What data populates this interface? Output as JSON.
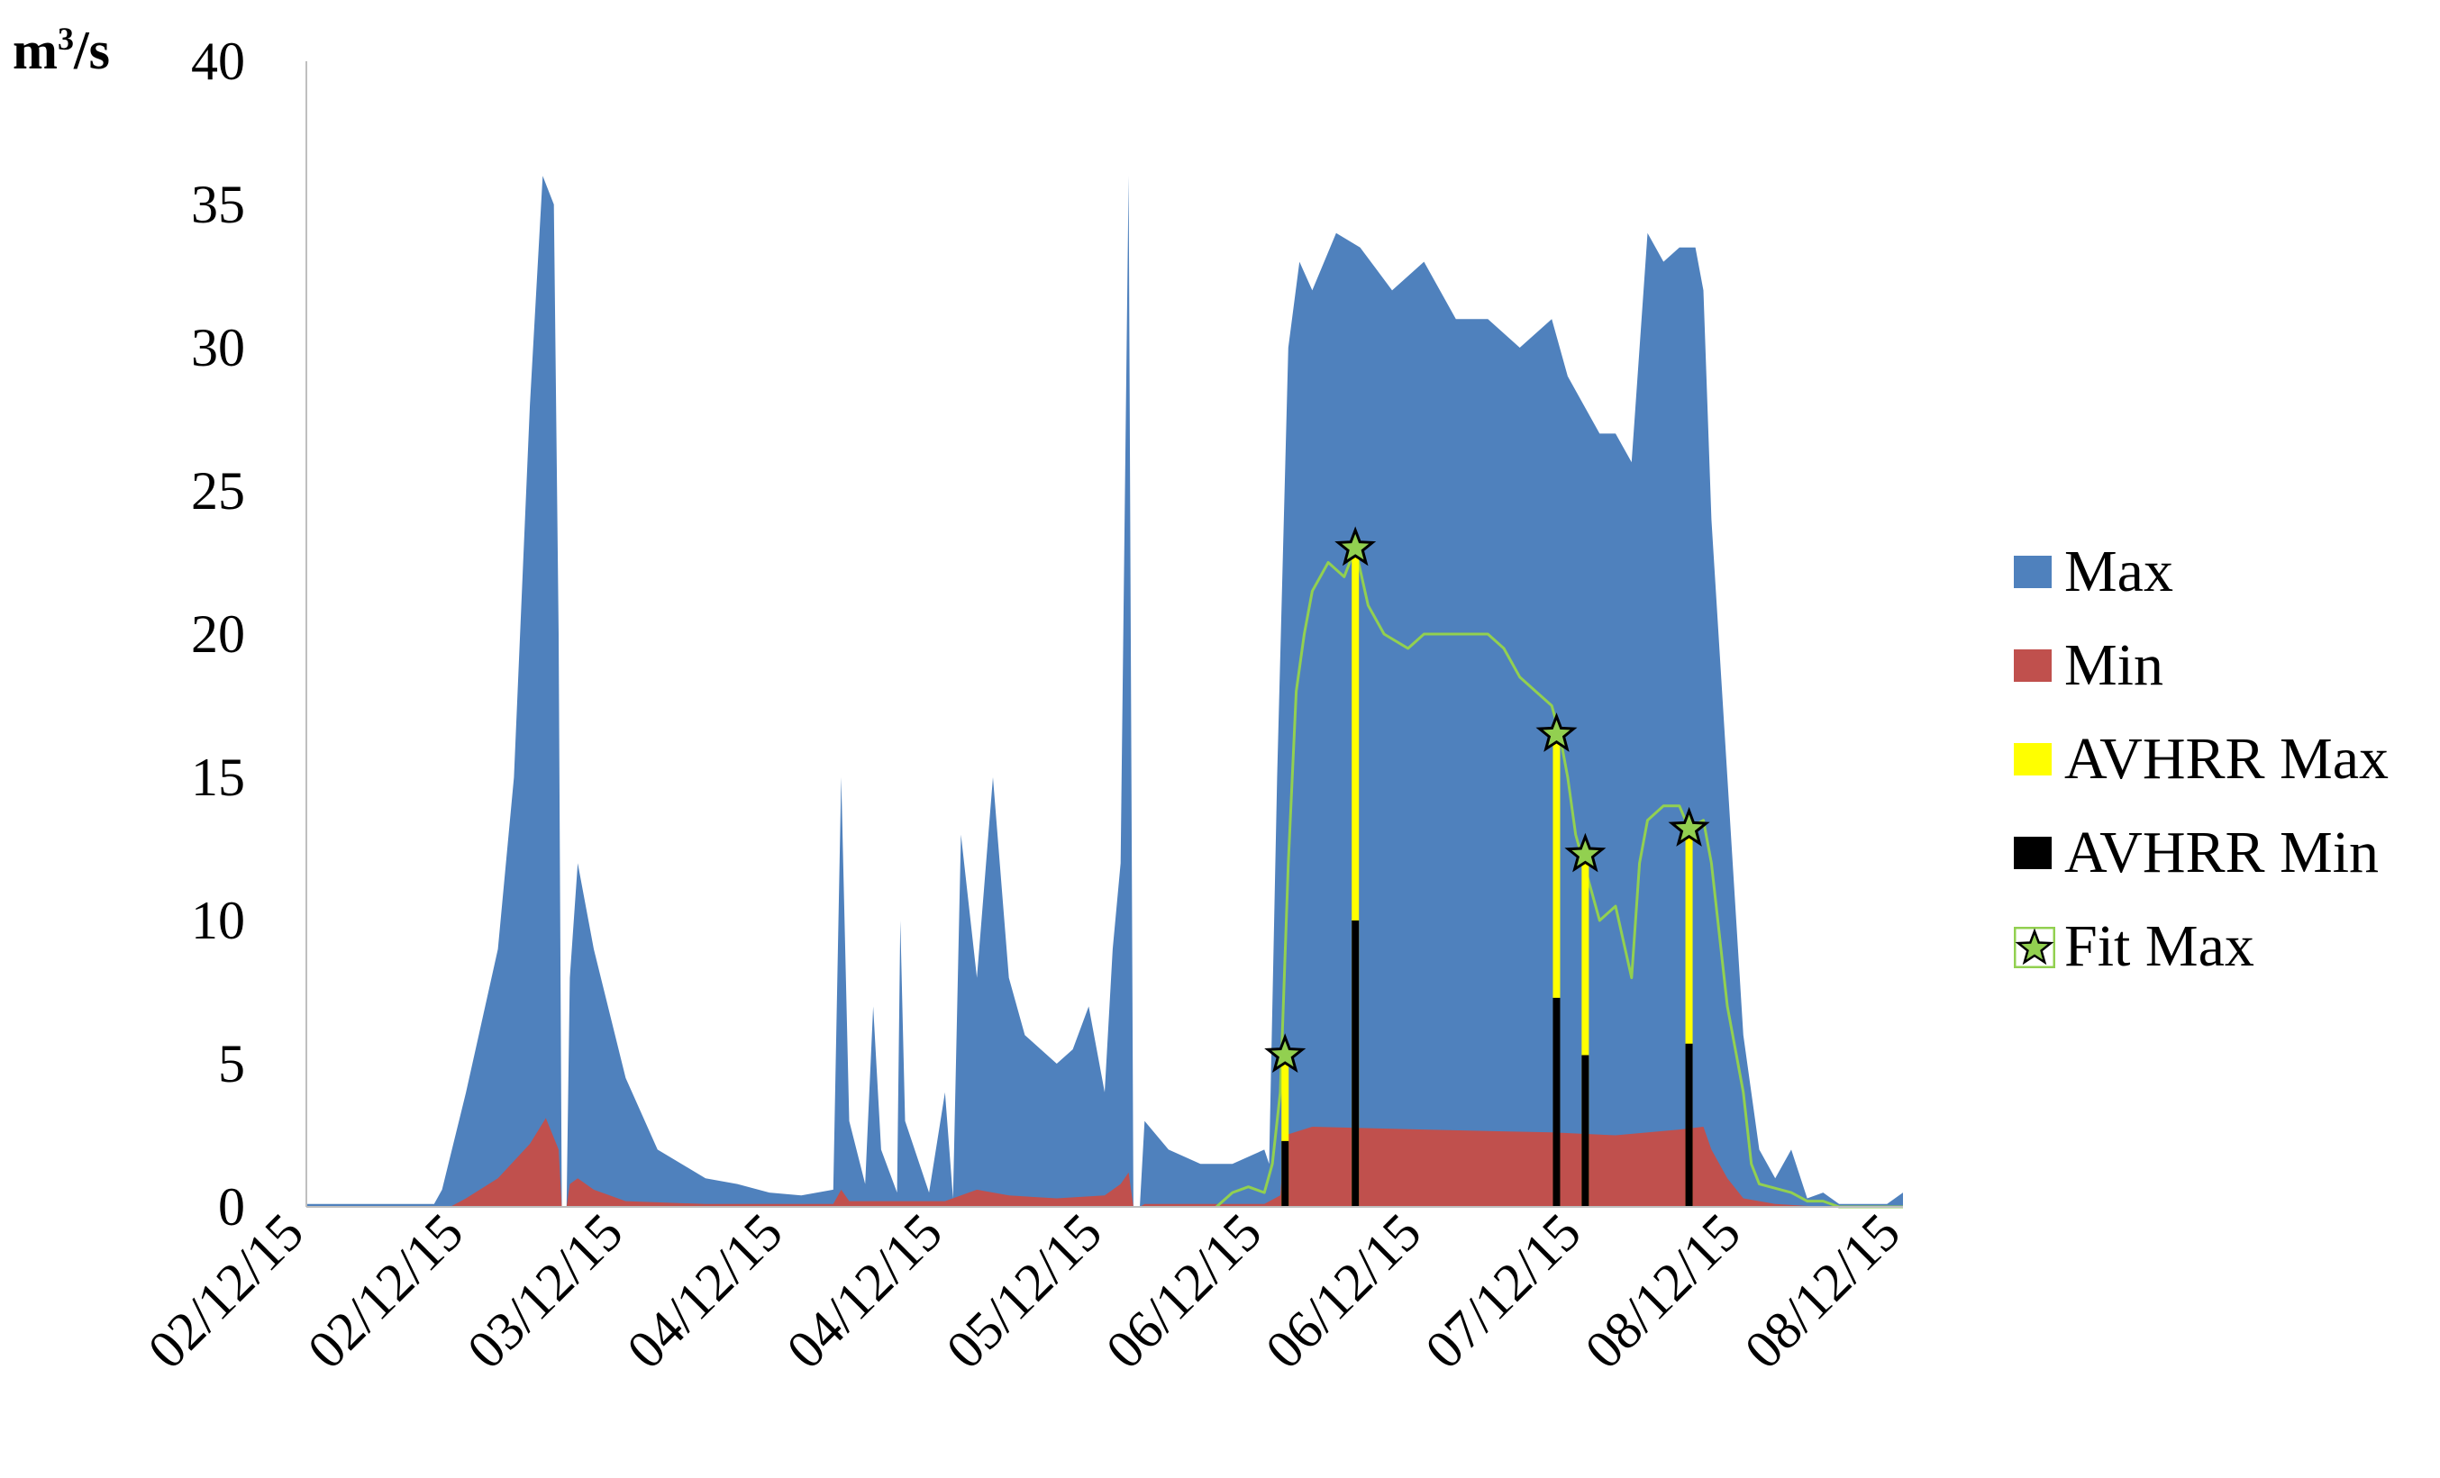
{
  "chart_data": {
    "type": "area",
    "ylabel_unit": "m3/s",
    "ylabel_unit_base": "m",
    "ylabel_unit_sup": "3",
    "ylabel_unit_rest": "/s",
    "ylim": [
      0,
      40
    ],
    "yticks": [
      "0",
      "5",
      "10",
      "15",
      "20",
      "25",
      "30",
      "35",
      "40"
    ],
    "xlim": [
      "2015-02-01",
      "2015-08-31"
    ],
    "xticks": [
      {
        "label": "02/12/15",
        "pos": 0.0
      },
      {
        "label": "02/12/15",
        "pos": 0.1
      },
      {
        "label": "03/12/15",
        "pos": 0.2
      },
      {
        "label": "04/12/15",
        "pos": 0.3
      },
      {
        "label": "04/12/15",
        "pos": 0.4
      },
      {
        "label": "05/12/15",
        "pos": 0.5
      },
      {
        "label": "06/12/15",
        "pos": 0.6
      },
      {
        "label": "06/12/15",
        "pos": 0.7
      },
      {
        "label": "07/12/15",
        "pos": 0.8
      },
      {
        "label": "08/12/15",
        "pos": 0.9
      },
      {
        "label": "08/12/15",
        "pos": 1.0
      }
    ],
    "legend_position": "right",
    "grid": false,
    "series": [
      {
        "name": "Max",
        "color": "#4f81bd",
        "style": "area",
        "points": [
          [
            0.0,
            0.1
          ],
          [
            0.05,
            0.1
          ],
          [
            0.08,
            0.1
          ],
          [
            0.085,
            0.6
          ],
          [
            0.1,
            4.0
          ],
          [
            0.12,
            9.0
          ],
          [
            0.13,
            15.0
          ],
          [
            0.14,
            28.0
          ],
          [
            0.148,
            36.0
          ],
          [
            0.155,
            35.0
          ],
          [
            0.158,
            20.0
          ],
          [
            0.16,
            0.0
          ],
          [
            0.163,
            0.0
          ],
          [
            0.165,
            8.0
          ],
          [
            0.17,
            12.0
          ],
          [
            0.18,
            9.0
          ],
          [
            0.2,
            4.5
          ],
          [
            0.22,
            2.0
          ],
          [
            0.25,
            1.0
          ],
          [
            0.27,
            0.8
          ],
          [
            0.29,
            0.5
          ],
          [
            0.31,
            0.4
          ],
          [
            0.33,
            0.6
          ],
          [
            0.335,
            15.0
          ],
          [
            0.34,
            3.0
          ],
          [
            0.35,
            0.8
          ],
          [
            0.355,
            7.0
          ],
          [
            0.36,
            2.0
          ],
          [
            0.37,
            0.5
          ],
          [
            0.372,
            10.0
          ],
          [
            0.375,
            3.0
          ],
          [
            0.39,
            0.5
          ],
          [
            0.4,
            4.0
          ],
          [
            0.405,
            0.3
          ],
          [
            0.41,
            13.0
          ],
          [
            0.42,
            8.0
          ],
          [
            0.43,
            15.0
          ],
          [
            0.44,
            8.0
          ],
          [
            0.45,
            6.0
          ],
          [
            0.47,
            5.0
          ],
          [
            0.48,
            5.5
          ],
          [
            0.49,
            7.0
          ],
          [
            0.5,
            4.0
          ],
          [
            0.505,
            9.0
          ],
          [
            0.51,
            12.0
          ],
          [
            0.515,
            36.0
          ],
          [
            0.518,
            0.0
          ],
          [
            0.522,
            0.0
          ],
          [
            0.525,
            3.0
          ],
          [
            0.54,
            2.0
          ],
          [
            0.56,
            1.5
          ],
          [
            0.58,
            1.5
          ],
          [
            0.6,
            2.0
          ],
          [
            0.603,
            1.5
          ],
          [
            0.608,
            15.0
          ],
          [
            0.615,
            30.0
          ],
          [
            0.622,
            33.0
          ],
          [
            0.63,
            32.0
          ],
          [
            0.645,
            34.0
          ],
          [
            0.66,
            33.5
          ],
          [
            0.68,
            32.0
          ],
          [
            0.7,
            33.0
          ],
          [
            0.72,
            31.0
          ],
          [
            0.74,
            31.0
          ],
          [
            0.76,
            30.0
          ],
          [
            0.78,
            31.0
          ],
          [
            0.79,
            29.0
          ],
          [
            0.8,
            28.0
          ],
          [
            0.81,
            27.0
          ],
          [
            0.82,
            27.0
          ],
          [
            0.83,
            26.0
          ],
          [
            0.84,
            34.0
          ],
          [
            0.85,
            33.0
          ],
          [
            0.86,
            33.5
          ],
          [
            0.87,
            33.5
          ],
          [
            0.875,
            32.0
          ],
          [
            0.88,
            24.0
          ],
          [
            0.89,
            15.0
          ],
          [
            0.9,
            6.0
          ],
          [
            0.91,
            2.0
          ],
          [
            0.92,
            1.0
          ],
          [
            0.93,
            2.0
          ],
          [
            0.94,
            0.3
          ],
          [
            0.95,
            0.5
          ],
          [
            0.96,
            0.1
          ],
          [
            0.99,
            0.1
          ],
          [
            1.0,
            0.5
          ]
        ]
      },
      {
        "name": "Min",
        "color": "#c0504d",
        "style": "area",
        "points": [
          [
            0.0,
            0.0
          ],
          [
            0.09,
            0.0
          ],
          [
            0.1,
            0.3
          ],
          [
            0.12,
            1.0
          ],
          [
            0.14,
            2.2
          ],
          [
            0.15,
            3.1
          ],
          [
            0.158,
            2.0
          ],
          [
            0.16,
            0.0
          ],
          [
            0.163,
            0.0
          ],
          [
            0.165,
            0.8
          ],
          [
            0.17,
            1.0
          ],
          [
            0.18,
            0.6
          ],
          [
            0.2,
            0.2
          ],
          [
            0.25,
            0.1
          ],
          [
            0.33,
            0.1
          ],
          [
            0.335,
            0.6
          ],
          [
            0.34,
            0.2
          ],
          [
            0.36,
            0.2
          ],
          [
            0.4,
            0.2
          ],
          [
            0.42,
            0.6
          ],
          [
            0.44,
            0.4
          ],
          [
            0.47,
            0.3
          ],
          [
            0.5,
            0.4
          ],
          [
            0.51,
            0.8
          ],
          [
            0.515,
            1.2
          ],
          [
            0.518,
            0.0
          ],
          [
            0.522,
            0.0
          ],
          [
            0.525,
            0.1
          ],
          [
            0.6,
            0.1
          ],
          [
            0.61,
            0.4
          ],
          [
            0.613,
            2.5
          ],
          [
            0.63,
            2.8
          ],
          [
            0.7,
            2.7
          ],
          [
            0.78,
            2.6
          ],
          [
            0.82,
            2.5
          ],
          [
            0.86,
            2.7
          ],
          [
            0.875,
            2.8
          ],
          [
            0.88,
            2.0
          ],
          [
            0.89,
            1.0
          ],
          [
            0.9,
            0.3
          ],
          [
            0.92,
            0.1
          ],
          [
            0.95,
            0.0
          ],
          [
            1.0,
            0.0
          ]
        ]
      },
      {
        "name": "AVHRR Max",
        "color": "#ffff00",
        "style": "bar",
        "bars": [
          {
            "x": 0.613,
            "y": 5.3
          },
          {
            "x": 0.657,
            "y": 23.0
          },
          {
            "x": 0.783,
            "y": 16.5
          },
          {
            "x": 0.801,
            "y": 12.3
          },
          {
            "x": 0.866,
            "y": 13.2
          }
        ]
      },
      {
        "name": "AVHRR Min",
        "color": "#000000",
        "style": "bar",
        "bars": [
          {
            "x": 0.613,
            "y": 2.3
          },
          {
            "x": 0.657,
            "y": 10.0
          },
          {
            "x": 0.783,
            "y": 7.3
          },
          {
            "x": 0.801,
            "y": 5.3
          },
          {
            "x": 0.866,
            "y": 5.7
          }
        ]
      },
      {
        "name": "Fit Max",
        "color": "#92d050",
        "style": "line",
        "points": [
          [
            0.57,
            0.0
          ],
          [
            0.58,
            0.5
          ],
          [
            0.59,
            0.7
          ],
          [
            0.6,
            0.5
          ],
          [
            0.605,
            1.5
          ],
          [
            0.61,
            4.0
          ],
          [
            0.615,
            12.0
          ],
          [
            0.62,
            18.0
          ],
          [
            0.625,
            20.0
          ],
          [
            0.63,
            21.5
          ],
          [
            0.64,
            22.5
          ],
          [
            0.65,
            22.0
          ],
          [
            0.657,
            23.0
          ],
          [
            0.665,
            21.0
          ],
          [
            0.675,
            20.0
          ],
          [
            0.69,
            19.5
          ],
          [
            0.7,
            20.0
          ],
          [
            0.72,
            20.0
          ],
          [
            0.74,
            20.0
          ],
          [
            0.75,
            19.5
          ],
          [
            0.76,
            18.5
          ],
          [
            0.77,
            18.0
          ],
          [
            0.78,
            17.5
          ],
          [
            0.785,
            16.5
          ],
          [
            0.79,
            15.0
          ],
          [
            0.795,
            13.0
          ],
          [
            0.8,
            12.0
          ],
          [
            0.805,
            11.0
          ],
          [
            0.81,
            10.0
          ],
          [
            0.82,
            10.5
          ],
          [
            0.83,
            8.0
          ],
          [
            0.835,
            12.0
          ],
          [
            0.84,
            13.5
          ],
          [
            0.85,
            14.0
          ],
          [
            0.86,
            14.0
          ],
          [
            0.866,
            13.2
          ],
          [
            0.875,
            13.5
          ],
          [
            0.88,
            12.0
          ],
          [
            0.89,
            7.0
          ],
          [
            0.9,
            4.0
          ],
          [
            0.905,
            1.5
          ],
          [
            0.91,
            0.8
          ],
          [
            0.93,
            0.5
          ],
          [
            0.94,
            0.2
          ],
          [
            0.95,
            0.2
          ],
          [
            0.96,
            0.0
          ],
          [
            1.0,
            0.0
          ]
        ]
      }
    ],
    "fit_max_stars": [
      {
        "x": 0.613,
        "y": 5.3
      },
      {
        "x": 0.657,
        "y": 23.0
      },
      {
        "x": 0.783,
        "y": 16.5
      },
      {
        "x": 0.801,
        "y": 12.3
      },
      {
        "x": 0.866,
        "y": 13.2
      }
    ],
    "legend": [
      {
        "label": "Max",
        "kind": "box",
        "color": "#4f81bd"
      },
      {
        "label": "Min",
        "kind": "box",
        "color": "#c0504d"
      },
      {
        "label": "AVHRR Max",
        "kind": "box",
        "color": "#ffff00"
      },
      {
        "label": "AVHRR Min",
        "kind": "box",
        "color": "#000000"
      },
      {
        "label": "Fit Max",
        "kind": "star",
        "color": "#92d050"
      }
    ]
  }
}
